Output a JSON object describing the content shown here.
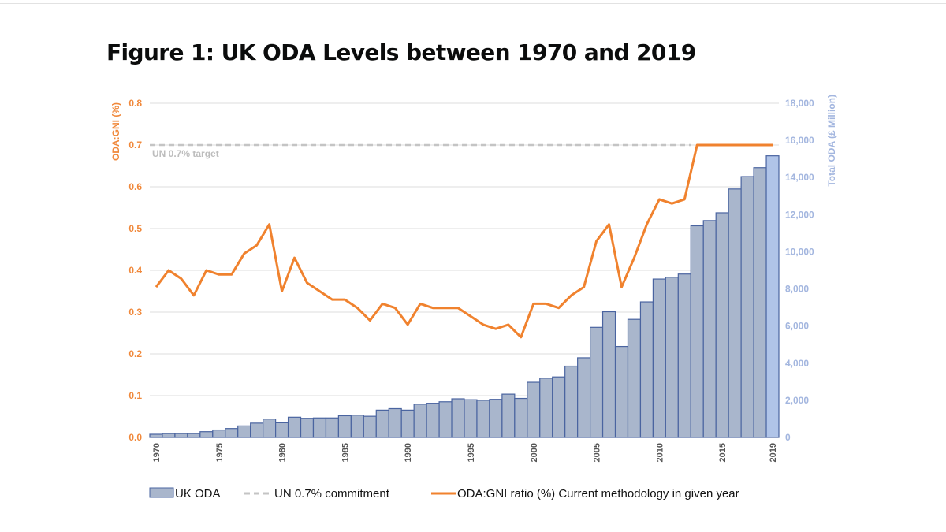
{
  "chart_data": {
    "type": "bar+line",
    "title": "Figure 1: UK ODA Levels between 1970 and 2019",
    "x": [
      1970,
      1971,
      1972,
      1973,
      1974,
      1975,
      1976,
      1977,
      1978,
      1979,
      1980,
      1981,
      1982,
      1983,
      1984,
      1985,
      1986,
      1987,
      1988,
      1989,
      1990,
      1991,
      1992,
      1993,
      1994,
      1995,
      1996,
      1997,
      1998,
      1999,
      2000,
      2001,
      2002,
      2003,
      2004,
      2005,
      2006,
      2007,
      2008,
      2009,
      2010,
      2011,
      2012,
      2013,
      2014,
      2015,
      2016,
      2017,
      2018,
      2019
    ],
    "x_tick_labels": [
      "1970",
      "1975",
      "1980",
      "1985",
      "1990",
      "1995",
      "2000",
      "2005",
      "2010",
      "2015",
      "2019"
    ],
    "y_left": {
      "label": "ODA:GNI (%)",
      "range": [
        0,
        0.8
      ],
      "ticks": [
        "0.0",
        "0.1",
        "0.2",
        "0.3",
        "0.4",
        "0.5",
        "0.6",
        "0.7",
        "0.8"
      ],
      "color": "#f0883a"
    },
    "y_right": {
      "label": "Total ODA (£ Million)",
      "range": [
        0,
        18000
      ],
      "ticks": [
        "0",
        "2,000",
        "4,000",
        "6,000",
        "8,000",
        "10,000",
        "12,000",
        "14,000",
        "16,000",
        "18,000"
      ],
      "color": "#a3b6df"
    },
    "grid": true,
    "legend_position": "bottom",
    "series": [
      {
        "name": "UK ODA",
        "type": "bar",
        "axis": "right",
        "color": "#a9b6cc",
        "edge_color": "#4a64a0",
        "highlight_last_color": "#b0c4e8",
        "values": [
          170,
          210,
          210,
          210,
          310,
          400,
          480,
          620,
          770,
          990,
          790,
          1090,
          1030,
          1050,
          1050,
          1170,
          1200,
          1140,
          1470,
          1550,
          1470,
          1790,
          1840,
          1920,
          2080,
          2030,
          2000,
          2050,
          2330,
          2100,
          2970,
          3190,
          3260,
          3840,
          4290,
          5930,
          6770,
          4900,
          6360,
          7300,
          8530,
          8630,
          8800,
          11400,
          11680,
          12100,
          13380,
          14050,
          14530,
          15170
        ]
      },
      {
        "name": "UN 0.7% commitment",
        "type": "line",
        "style": "dashed",
        "axis": "left",
        "color": "#c4c4c4",
        "value": 0.7,
        "annotation": "UN 0.7% target"
      },
      {
        "name": "ODA:GNI ratio (%) Current methodology in given year",
        "type": "line",
        "axis": "left",
        "color": "#f0822e",
        "values": [
          0.36,
          0.4,
          0.38,
          0.34,
          0.4,
          0.39,
          0.39,
          0.44,
          0.46,
          0.51,
          0.35,
          0.43,
          0.37,
          0.35,
          0.33,
          0.33,
          0.31,
          0.28,
          0.32,
          0.31,
          0.27,
          0.32,
          0.31,
          0.31,
          0.31,
          0.29,
          0.27,
          0.26,
          0.27,
          0.24,
          0.32,
          0.32,
          0.31,
          0.34,
          0.36,
          0.47,
          0.51,
          0.36,
          0.43,
          0.51,
          0.57,
          0.56,
          0.57,
          0.7,
          0.7,
          0.7,
          0.7,
          0.7,
          0.7,
          0.7
        ]
      }
    ]
  }
}
